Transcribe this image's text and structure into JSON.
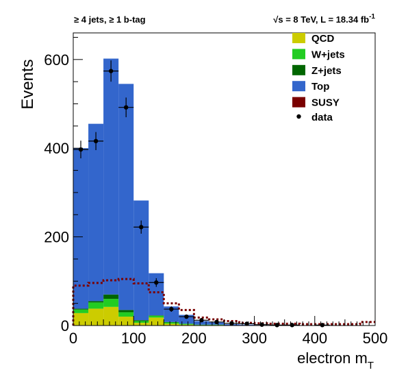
{
  "header": {
    "left": "≥ 4 jets, ≥ 1 b-tag",
    "right_sqrt": "√s",
    "right_main": " = 8 TeV, L = 18.34 fb",
    "right_sup": "-1"
  },
  "chart_data": {
    "type": "bar",
    "stacked": true,
    "xlabel_main": "electron m",
    "xlabel_sub": "T",
    "ylabel": "Events",
    "xlim": [
      0,
      500
    ],
    "ylim": [
      0,
      660
    ],
    "xticks": [
      0,
      100,
      200,
      300,
      400,
      500
    ],
    "yticks": [
      0,
      200,
      400,
      600
    ],
    "bin_edges": [
      0,
      25,
      50,
      75,
      100,
      125,
      150,
      175,
      200,
      225,
      250,
      275,
      300,
      325,
      350,
      375,
      400,
      425,
      450,
      475,
      500
    ],
    "legend_position": "top-right",
    "series": [
      {
        "name": "QCD",
        "color": "#cccc00",
        "values": [
          28,
          38,
          42,
          20,
          6,
          18,
          4,
          2,
          1,
          1,
          0,
          0,
          0,
          0,
          0,
          0,
          0,
          0,
          0,
          0
        ]
      },
      {
        "name": "W+jets",
        "color": "#22cc22",
        "values": [
          8,
          14,
          18,
          10,
          4,
          4,
          3,
          2,
          1,
          1,
          0,
          0,
          0,
          0,
          0,
          0,
          0,
          0,
          0,
          0
        ]
      },
      {
        "name": "Z+jets",
        "color": "#006600",
        "values": [
          2,
          3,
          10,
          5,
          2,
          1,
          1,
          0,
          0,
          0,
          0,
          0,
          0,
          0,
          0,
          0,
          0,
          0,
          0,
          0
        ]
      },
      {
        "name": "Top",
        "color": "#3366cc",
        "values": [
          362,
          400,
          532,
          510,
          270,
          95,
          35,
          20,
          8,
          5,
          3,
          2,
          1,
          1,
          1,
          0,
          0,
          0,
          0,
          0
        ]
      }
    ],
    "signal": {
      "name": "SUSY",
      "color": "#7a0000",
      "values": [
        90,
        96,
        102,
        105,
        95,
        75,
        50,
        35,
        18,
        14,
        10,
        6,
        5,
        4,
        4,
        3,
        3,
        3,
        3,
        8
      ]
    },
    "data": {
      "name": "data",
      "color": "#000000",
      "values": [
        397,
        416,
        574,
        492,
        222,
        97,
        37,
        20,
        12,
        8,
        5,
        4,
        2,
        1,
        1,
        0,
        1,
        0,
        0,
        0
      ]
    }
  }
}
